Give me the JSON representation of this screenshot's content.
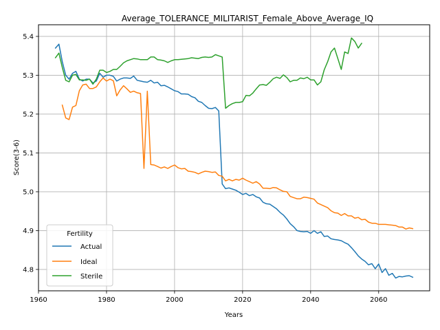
{
  "chart_data": {
    "type": "line",
    "title": "Average_TOLERANCE_MILITARIST_Female_Above_Average_IQ",
    "xlabel": "Years",
    "ylabel": "Score(3-6)",
    "xlim": [
      1960,
      2075
    ],
    "ylim": [
      4.745,
      5.43
    ],
    "xticks": [
      1960,
      1980,
      2000,
      2020,
      2040,
      2060
    ],
    "yticks": [
      4.8,
      4.9,
      5.0,
      5.1,
      5.2,
      5.3,
      5.4
    ],
    "ytick_labels": [
      "4.8",
      "4.9",
      "5.0",
      "5.1",
      "5.2",
      "5.3",
      "5.4"
    ],
    "grid": true,
    "legend": {
      "title": "Fertility",
      "placement": "lower-left"
    },
    "series": [
      {
        "name": "Actual",
        "color": "#1f77b4",
        "x": [
          1965,
          1966,
          1967,
          1968,
          1969,
          1970,
          1971,
          1972,
          1973,
          1974,
          1975,
          1976,
          1977,
          1978,
          1979,
          1980,
          1981,
          1982,
          1983,
          1984,
          1985,
          1986,
          1987,
          1988,
          1989,
          1990,
          1991,
          1992,
          1993,
          1994,
          1995,
          1996,
          1997,
          1998,
          1999,
          2000,
          2001,
          2002,
          2003,
          2004,
          2005,
          2006,
          2007,
          2008,
          2009,
          2010,
          2011,
          2012,
          2013,
          2014,
          2015,
          2016,
          2017,
          2018,
          2019,
          2020,
          2021,
          2022,
          2023,
          2024,
          2025,
          2026,
          2027,
          2028,
          2029,
          2030,
          2031,
          2032,
          2033,
          2034,
          2035,
          2036,
          2037,
          2038,
          2039,
          2040,
          2041,
          2042,
          2043,
          2044,
          2045,
          2046,
          2047,
          2048,
          2049,
          2050,
          2051,
          2052,
          2053,
          2054,
          2055,
          2056,
          2057,
          2058,
          2059,
          2060,
          2061,
          2062,
          2063,
          2064,
          2065,
          2066,
          2067,
          2068,
          2069,
          2070
        ],
        "values": [
          5.37,
          5.38,
          5.335,
          5.3,
          5.29,
          5.305,
          5.31,
          5.29,
          5.285,
          5.29,
          5.29,
          5.28,
          5.285,
          5.305,
          5.295,
          5.3,
          5.3,
          5.297,
          5.285,
          5.29,
          5.293,
          5.293,
          5.292,
          5.298,
          5.287,
          5.285,
          5.283,
          5.282,
          5.287,
          5.28,
          5.282,
          5.273,
          5.274,
          5.27,
          5.265,
          5.26,
          5.258,
          5.252,
          5.252,
          5.251,
          5.245,
          5.242,
          5.233,
          5.23,
          5.222,
          5.215,
          5.214,
          5.217,
          5.208,
          5.02,
          5.008,
          5.01,
          5.007,
          5.004,
          4.999,
          4.993,
          4.996,
          4.99,
          4.993,
          4.987,
          4.984,
          4.973,
          4.969,
          4.968,
          4.962,
          4.956,
          4.947,
          4.94,
          4.93,
          4.918,
          4.91,
          4.9,
          4.898,
          4.897,
          4.898,
          4.893,
          4.9,
          4.893,
          4.897,
          4.885,
          4.886,
          4.879,
          4.877,
          4.876,
          4.874,
          4.869,
          4.865,
          4.856,
          4.846,
          4.835,
          4.827,
          4.821,
          4.812,
          4.815,
          4.802,
          4.814,
          4.792,
          4.802,
          4.785,
          4.79,
          4.778,
          4.782,
          4.781,
          4.783,
          4.784,
          4.78
        ]
      },
      {
        "name": "Ideal",
        "color": "#ff7f0e",
        "x": [
          1967,
          1968,
          1969,
          1970,
          1971,
          1972,
          1973,
          1974,
          1975,
          1976,
          1977,
          1978,
          1979,
          1980,
          1981,
          1982,
          1983,
          1984,
          1985,
          1986,
          1987,
          1988,
          1989,
          1990,
          1991,
          1992,
          1993,
          1994,
          1995,
          1996,
          1997,
          1998,
          1999,
          2000,
          2001,
          2002,
          2003,
          2004,
          2005,
          2006,
          2007,
          2008,
          2009,
          2010,
          2011,
          2012,
          2013,
          2014,
          2015,
          2016,
          2017,
          2018,
          2019,
          2020,
          2021,
          2022,
          2023,
          2024,
          2025,
          2026,
          2027,
          2028,
          2029,
          2030,
          2031,
          2032,
          2033,
          2034,
          2035,
          2036,
          2037,
          2038,
          2039,
          2040,
          2041,
          2042,
          2043,
          2044,
          2045,
          2046,
          2047,
          2048,
          2049,
          2050,
          2051,
          2052,
          2053,
          2054,
          2055,
          2056,
          2057,
          2058,
          2059,
          2060,
          2061,
          2062,
          2063,
          2064,
          2065,
          2066,
          2067,
          2068,
          2069,
          2070
        ],
        "values": [
          5.223,
          5.19,
          5.186,
          5.218,
          5.222,
          5.26,
          5.275,
          5.277,
          5.266,
          5.266,
          5.27,
          5.283,
          5.293,
          5.285,
          5.29,
          5.286,
          5.247,
          5.262,
          5.273,
          5.265,
          5.256,
          5.259,
          5.255,
          5.253,
          5.06,
          5.259,
          5.07,
          5.069,
          5.065,
          5.061,
          5.064,
          5.06,
          5.065,
          5.069,
          5.062,
          5.059,
          5.06,
          5.053,
          5.052,
          5.05,
          5.046,
          5.05,
          5.053,
          5.052,
          5.05,
          5.051,
          5.042,
          5.04,
          5.028,
          5.032,
          5.028,
          5.032,
          5.03,
          5.035,
          5.03,
          5.026,
          5.022,
          5.026,
          5.02,
          5.009,
          5.009,
          5.008,
          5.011,
          5.01,
          5.005,
          5.001,
          5.0,
          4.988,
          4.985,
          4.982,
          4.982,
          4.986,
          4.985,
          4.983,
          4.981,
          4.971,
          4.967,
          4.963,
          4.959,
          4.951,
          4.946,
          4.945,
          4.939,
          4.944,
          4.938,
          4.938,
          4.932,
          4.934,
          4.928,
          4.929,
          4.922,
          4.919,
          4.919,
          4.916,
          4.916,
          4.916,
          4.915,
          4.914,
          4.913,
          4.909,
          4.909,
          4.904,
          4.907,
          4.905
        ]
      },
      {
        "name": "Sterile",
        "color": "#2ca02c",
        "x": [
          1965,
          1966,
          1967,
          1968,
          1969,
          1970,
          1971,
          1972,
          1973,
          1974,
          1975,
          1976,
          1977,
          1978,
          1979,
          1980,
          1981,
          1982,
          1983,
          1984,
          1985,
          1986,
          1987,
          1988,
          1989,
          1990,
          1991,
          1992,
          1993,
          1994,
          1995,
          1996,
          1997,
          1998,
          1999,
          2000,
          2001,
          2002,
          2003,
          2004,
          2005,
          2006,
          2007,
          2008,
          2009,
          2010,
          2011,
          2012,
          2013,
          2014,
          2015,
          2016,
          2017,
          2018,
          2019,
          2020,
          2021,
          2022,
          2023,
          2024,
          2025,
          2026,
          2027,
          2028,
          2029,
          2030,
          2031,
          2032,
          2033,
          2034,
          2035,
          2036,
          2037,
          2038,
          2039,
          2040,
          2041,
          2042,
          2043,
          2044,
          2045,
          2046,
          2047,
          2048,
          2049,
          2050,
          2051,
          2052,
          2053,
          2054,
          2055
        ],
        "values": [
          5.345,
          5.357,
          5.32,
          5.287,
          5.283,
          5.3,
          5.302,
          5.288,
          5.288,
          5.287,
          5.29,
          5.277,
          5.29,
          5.313,
          5.313,
          5.307,
          5.31,
          5.315,
          5.315,
          5.323,
          5.332,
          5.337,
          5.34,
          5.343,
          5.342,
          5.34,
          5.34,
          5.34,
          5.347,
          5.347,
          5.34,
          5.339,
          5.337,
          5.333,
          5.337,
          5.34,
          5.34,
          5.341,
          5.342,
          5.343,
          5.345,
          5.344,
          5.343,
          5.346,
          5.347,
          5.346,
          5.347,
          5.353,
          5.35,
          5.347,
          5.215,
          5.222,
          5.227,
          5.23,
          5.23,
          5.232,
          5.248,
          5.247,
          5.254,
          5.265,
          5.275,
          5.276,
          5.274,
          5.282,
          5.291,
          5.295,
          5.292,
          5.301,
          5.294,
          5.283,
          5.287,
          5.287,
          5.293,
          5.291,
          5.295,
          5.288,
          5.288,
          5.275,
          5.283,
          5.314,
          5.335,
          5.36,
          5.37,
          5.343,
          5.315,
          5.36,
          5.356,
          5.396,
          5.387,
          5.37,
          5.382
        ]
      }
    ]
  }
}
